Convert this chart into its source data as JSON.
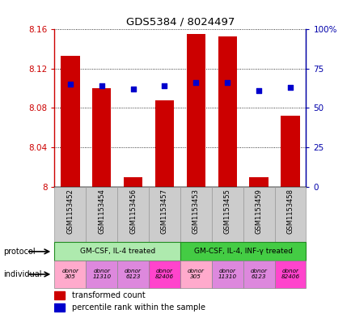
{
  "title": "GDS5384 / 8024497",
  "samples": [
    "GSM1153452",
    "GSM1153454",
    "GSM1153456",
    "GSM1153457",
    "GSM1153453",
    "GSM1153455",
    "GSM1153459",
    "GSM1153458"
  ],
  "red_values": [
    8.133,
    8.1,
    8.01,
    8.088,
    8.155,
    8.153,
    8.01,
    8.072
  ],
  "blue_values": [
    65,
    64,
    62,
    64,
    66,
    66,
    61,
    63
  ],
  "ylim_left": [
    8.0,
    8.16
  ],
  "ylim_right": [
    0,
    100
  ],
  "yticks_left": [
    8.0,
    8.04,
    8.08,
    8.12,
    8.16
  ],
  "yticks_right": [
    0,
    25,
    50,
    75,
    100
  ],
  "ytick_labels_left": [
    "8",
    "8.04",
    "8.08",
    "8.12",
    "8.16"
  ],
  "ytick_labels_right": [
    "0",
    "25",
    "50",
    "75",
    "100%"
  ],
  "protocols": [
    {
      "label": "GM-CSF, IL-4 treated",
      "span": [
        0,
        4
      ],
      "color": "#aeeaae"
    },
    {
      "label": "GM-CSF, IL-4, INF-γ treated",
      "span": [
        4,
        8
      ],
      "color": "#44cc44"
    }
  ],
  "individuals": [
    {
      "label": "donor\n305",
      "color": "#ffaacc"
    },
    {
      "label": "donor\n11310",
      "color": "#dd88dd"
    },
    {
      "label": "donor\n6123",
      "color": "#dd88dd"
    },
    {
      "label": "donor\n82406",
      "color": "#ff44cc"
    },
    {
      "label": "donor\n305",
      "color": "#ffaacc"
    },
    {
      "label": "donor\n11310",
      "color": "#dd88dd"
    },
    {
      "label": "donor\n6123",
      "color": "#dd88dd"
    },
    {
      "label": "donor\n82406",
      "color": "#ff44cc"
    }
  ],
  "legend_items": [
    {
      "color": "#CC0000",
      "label": "transformed count"
    },
    {
      "color": "#0000CC",
      "label": "percentile rank within the sample"
    }
  ],
  "bar_color": "#CC0000",
  "dot_color": "#0000CC",
  "bar_width": 0.6,
  "left_axis_color": "#CC0000",
  "right_axis_color": "#0000AA",
  "sample_bg_color": "#cccccc",
  "sample_border_color": "#999999"
}
